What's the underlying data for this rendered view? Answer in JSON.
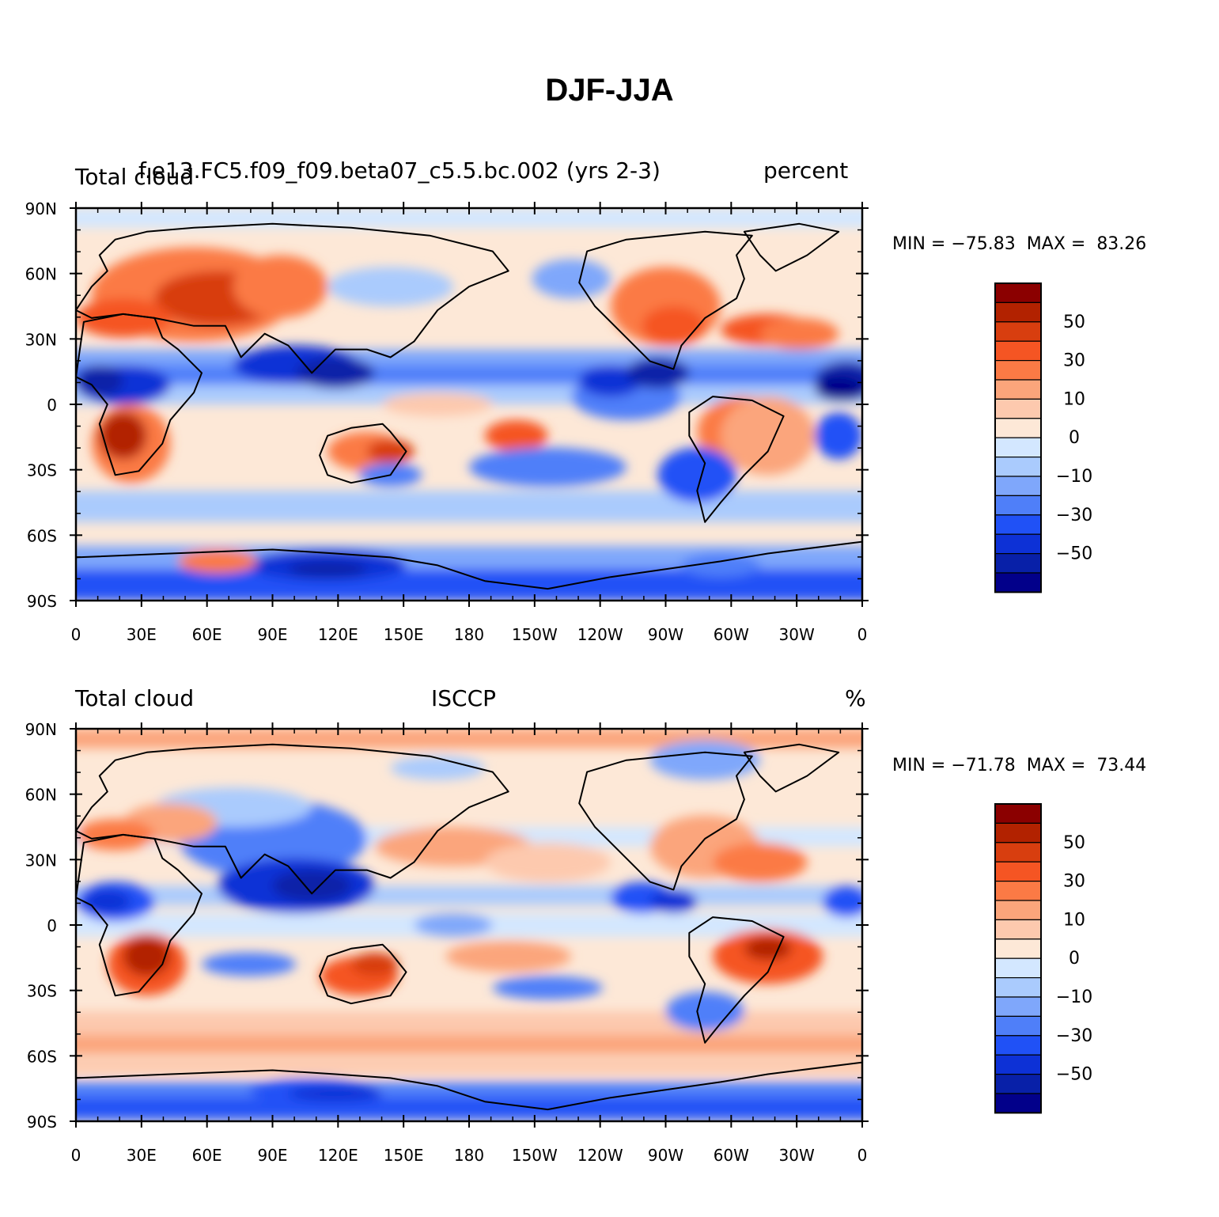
{
  "figure": {
    "title": "DJF-JJA"
  },
  "axes": {
    "lat_labels": [
      "90N",
      "60N",
      "30N",
      "0",
      "30S",
      "60S",
      "90S"
    ],
    "lon_labels": [
      "0",
      "30E",
      "60E",
      "90E",
      "120E",
      "150E",
      "180",
      "150W",
      "120W",
      "90W",
      "60W",
      "30W",
      "0"
    ]
  },
  "colorbar": {
    "labels": [
      "50",
      "30",
      "10",
      "0",
      "−10",
      "−30",
      "−50"
    ],
    "colors": [
      "#8b0000",
      "#b22200",
      "#d83e0f",
      "#f55523",
      "#fb7a45",
      "#fba57b",
      "#fdc9ae",
      "#fde8d7",
      "#d3e7ff",
      "#aacbfd",
      "#7fa7fb",
      "#4f7ff9",
      "#2051f6",
      "#0d31d6",
      "#0820a8",
      "#02008a"
    ]
  },
  "panels": [
    {
      "left_title": "Total cloud",
      "center_title": "f.e13.FC5.f09_f09.beta07_c5.5.bc.002 (yrs 2-3)",
      "right_title": "percent",
      "min_label": "MIN =",
      "min_value": "−75.83",
      "max_label": "MAX =",
      "max_value": "83.26"
    },
    {
      "left_title": "Total cloud",
      "center_title": "ISCCP",
      "right_title": "%",
      "min_label": "MIN =",
      "min_value": "−71.78",
      "max_label": "MAX =",
      "max_value": "73.44"
    }
  ]
}
